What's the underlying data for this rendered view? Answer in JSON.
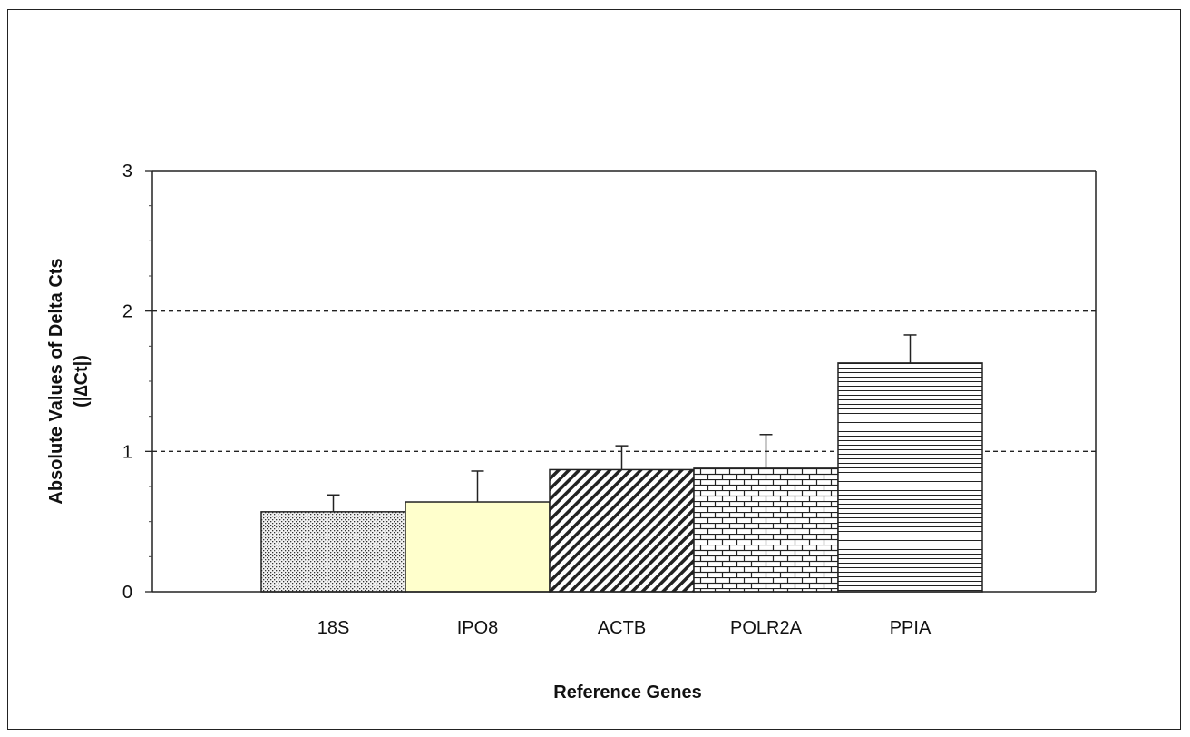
{
  "chart_data": {
    "type": "bar",
    "title": "",
    "xlabel": "Reference Genes",
    "ylabel": "Absolute Values of Delta Cts",
    "ylabel_sub": "(|∆Ct|)",
    "categories": [
      "18S",
      "IPO8",
      "ACTB",
      "POLR2A",
      "PPIA"
    ],
    "values": [
      0.57,
      0.64,
      0.87,
      0.88,
      1.63
    ],
    "errors": [
      0.12,
      0.22,
      0.17,
      0.24,
      0.2
    ],
    "ylim": [
      0,
      3
    ],
    "yticks": [
      "0",
      "1",
      "2",
      "3"
    ],
    "reference_lines": [
      1,
      2
    ],
    "grid": false,
    "legend": "none",
    "bar_styles": [
      {
        "fill": "#f0f0f0",
        "pattern": "dots"
      },
      {
        "fill": "#ffffcc",
        "pattern": "none"
      },
      {
        "fill": "#ffffff",
        "pattern": "diagonal"
      },
      {
        "fill": "#ffffff",
        "pattern": "brick"
      },
      {
        "fill": "#ffffff",
        "pattern": "horizontal"
      }
    ]
  }
}
